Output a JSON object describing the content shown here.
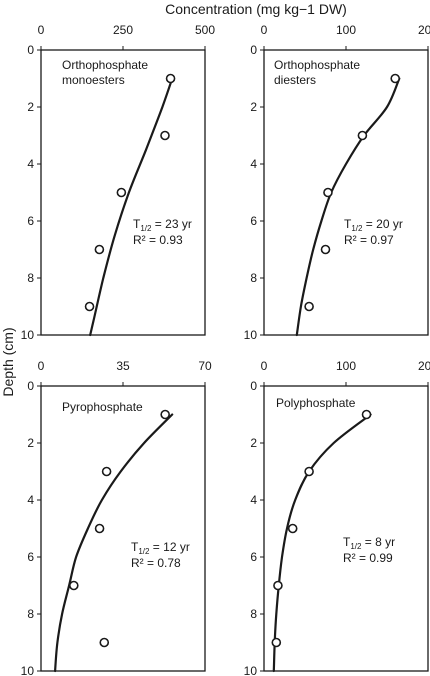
{
  "figure": {
    "top_axis_label": "Concentration (mg kg−1 DW)",
    "y_axis_label": "Depth (cm)"
  },
  "chart_data": [
    {
      "type": "scatter",
      "title": "Orthophosphate monoesters",
      "title_lines": [
        "Orthophosphate",
        "monoesters"
      ],
      "xlim": [
        0,
        500
      ],
      "x_ticks": [
        "0",
        "250",
        "500"
      ],
      "ylim": [
        0,
        10
      ],
      "y_ticks": [
        "0",
        "2",
        "4",
        "6",
        "8",
        "10"
      ],
      "y_inverted": true,
      "points": [
        {
          "x": 395,
          "y": 1
        },
        {
          "x": 378,
          "y": 3
        },
        {
          "x": 245,
          "y": 5
        },
        {
          "x": 178,
          "y": 7
        },
        {
          "x": 148,
          "y": 9
        }
      ],
      "fit_curve": [
        [
          400,
          1
        ],
        [
          370,
          2
        ],
        [
          320,
          3.5
        ],
        [
          268,
          5
        ],
        [
          225,
          6.5
        ],
        [
          190,
          8
        ],
        [
          160,
          9.5
        ],
        [
          150,
          10
        ]
      ],
      "half_life_prefix": "T",
      "half_life_sub": "1/2",
      "half_life_value": " = 23 yr",
      "r2_text": "R² = 0.93"
    },
    {
      "type": "scatter",
      "title": "Orthophosphate diesters",
      "title_lines": [
        "Orthophosphate",
        "diesters"
      ],
      "xlim": [
        0,
        200
      ],
      "x_ticks": [
        "0",
        "100",
        "200"
      ],
      "ylim": [
        0,
        10
      ],
      "y_ticks": [
        "0",
        "2",
        "4",
        "6",
        "8",
        "10"
      ],
      "y_inverted": true,
      "points": [
        {
          "x": 160,
          "y": 1
        },
        {
          "x": 120,
          "y": 3
        },
        {
          "x": 78,
          "y": 5
        },
        {
          "x": 75,
          "y": 7
        },
        {
          "x": 55,
          "y": 9
        }
      ],
      "fit_curve": [
        [
          165,
          1
        ],
        [
          150,
          2
        ],
        [
          122,
          3
        ],
        [
          100,
          4
        ],
        [
          82,
          5
        ],
        [
          70,
          6
        ],
        [
          60,
          7
        ],
        [
          52,
          8
        ],
        [
          45,
          9
        ],
        [
          40,
          10
        ]
      ],
      "half_life_prefix": "T",
      "half_life_sub": "1/2",
      "half_life_value": " = 20 yr",
      "r2_text": "R² = 0.97"
    },
    {
      "type": "scatter",
      "title": "Pyrophosphate",
      "title_lines": [
        "Pyrophosphate"
      ],
      "xlim": [
        0,
        70
      ],
      "x_ticks": [
        "0",
        "35",
        "70"
      ],
      "ylim": [
        0,
        10
      ],
      "y_ticks": [
        "0",
        "2",
        "4",
        "6",
        "8",
        "10"
      ],
      "y_inverted": true,
      "points": [
        {
          "x": 53,
          "y": 1
        },
        {
          "x": 28,
          "y": 3
        },
        {
          "x": 25,
          "y": 5
        },
        {
          "x": 14,
          "y": 7
        },
        {
          "x": 27,
          "y": 9
        }
      ],
      "fit_curve": [
        [
          56,
          1
        ],
        [
          44,
          2
        ],
        [
          34,
          3
        ],
        [
          26,
          4
        ],
        [
          20,
          5
        ],
        [
          15,
          6
        ],
        [
          12,
          7
        ],
        [
          9,
          8
        ],
        [
          7,
          9
        ],
        [
          6,
          10
        ]
      ],
      "half_life_prefix": "T",
      "half_life_sub": "1/2",
      "half_life_value": " = 12 yr",
      "r2_text": "R² = 0.78"
    },
    {
      "type": "scatter",
      "title": "Polyphosphate",
      "title_lines": [
        "Polyphosphate"
      ],
      "xlim": [
        0,
        200
      ],
      "x_ticks": [
        "0",
        "100",
        "200"
      ],
      "ylim": [
        0,
        10
      ],
      "y_ticks": [
        "0",
        "2",
        "4",
        "6",
        "8",
        "10"
      ],
      "y_inverted": true,
      "points": [
        {
          "x": 125,
          "y": 1
        },
        {
          "x": 55,
          "y": 3
        },
        {
          "x": 35,
          "y": 5
        },
        {
          "x": 17,
          "y": 7
        },
        {
          "x": 15,
          "y": 9
        }
      ],
      "fit_curve": [
        [
          130,
          1
        ],
        [
          85,
          2
        ],
        [
          55,
          3
        ],
        [
          38,
          4
        ],
        [
          28,
          5
        ],
        [
          22,
          6
        ],
        [
          18,
          7
        ],
        [
          15,
          8
        ],
        [
          13,
          9
        ],
        [
          12,
          10
        ]
      ],
      "half_life_prefix": "T",
      "half_life_sub": "1/2",
      "half_life_value": " = 8 yr",
      "r2_text": "R² = 0.99"
    }
  ]
}
